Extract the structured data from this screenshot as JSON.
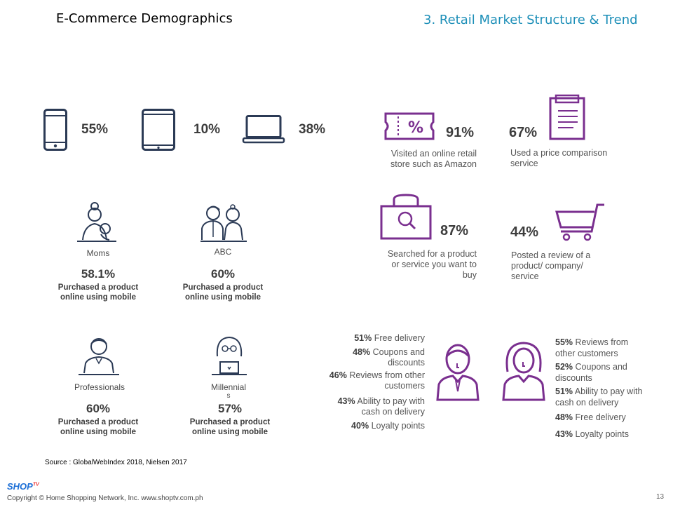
{
  "header": {
    "left_title": "E-Commerce Demographics",
    "right_title": "3. Retail Market Structure & Trend"
  },
  "devices": [
    {
      "icon": "smartphone-icon",
      "percent": "55%"
    },
    {
      "icon": "tablet-icon",
      "percent": "10%"
    },
    {
      "icon": "laptop-icon",
      "percent": "38%"
    }
  ],
  "segments": [
    {
      "icon": "mom-icon",
      "label": "Moms",
      "percent": "58.1%",
      "desc_line1": "Purchased a product",
      "desc_line2": "online using mobile"
    },
    {
      "icon": "couple-icon",
      "label": "ABC",
      "percent": "60%",
      "desc_line1": "Purchased a product",
      "desc_line2": "online using mobile"
    },
    {
      "icon": "professional-icon",
      "label": "Professionals",
      "percent": "60%",
      "desc_line1": "Purchased a product",
      "desc_line2": "online using mobile"
    },
    {
      "icon": "millennial-icon",
      "label_line1": "Millennial",
      "label_line2": "s",
      "percent": "57%",
      "desc_line1": "Purchased a product",
      "desc_line2": "online using mobile"
    }
  ],
  "activities": [
    {
      "icon": "coupon-icon",
      "percent": "91%",
      "desc_line1": "Visited an online retail",
      "desc_line2": "store such as Amazon"
    },
    {
      "icon": "clipboard-icon",
      "percent": "67%",
      "desc_line1": "Used a price comparison",
      "desc_line2": "service"
    },
    {
      "icon": "shopping-bag-icon",
      "percent": "87%",
      "desc_line1": "Searched for a product",
      "desc_line2": "or service you want to",
      "desc_line3": "buy"
    },
    {
      "icon": "shopping-cart-icon",
      "percent": "44%",
      "desc_line1": "Posted a review of a",
      "desc_line2": "product/ company/",
      "desc_line3": "service"
    }
  ],
  "male_preferences": [
    {
      "pct": "51%",
      "lines": [
        "Free delivery"
      ]
    },
    {
      "pct": "48%",
      "lines": [
        "Coupons and",
        "discounts"
      ]
    },
    {
      "pct": "46%",
      "lines": [
        "Reviews from other",
        "customers"
      ]
    },
    {
      "pct": "43%",
      "lines": [
        "Ability to pay with",
        "cash on delivery"
      ]
    },
    {
      "pct": "40%",
      "lines": [
        "Loyalty points"
      ]
    }
  ],
  "female_preferences": [
    {
      "pct": "55%",
      "lines": [
        "Reviews from",
        "other customers"
      ]
    },
    {
      "pct": "52%",
      "lines": [
        "Coupons and",
        "discounts"
      ]
    },
    {
      "pct": "51%",
      "lines": [
        "Ability to pay with",
        "cash on delivery"
      ]
    },
    {
      "pct": "48%",
      "lines": [
        "Free delivery"
      ]
    },
    {
      "pct": "43%",
      "lines": [
        "Loyalty points"
      ]
    }
  ],
  "footer": {
    "source": "Source : GlobalWebIndex 2018, Nielsen 2017",
    "copyright": "Copyright © Home Shopping Network, Inc. www.shoptv.com.ph",
    "page_number": "13",
    "logo_text": "SHOP",
    "logo_sup": "TV"
  },
  "colors": {
    "accent_purple": "#7a2f8f",
    "title_blue": "#1d8fb8",
    "device_navy": "#2b3a55"
  }
}
